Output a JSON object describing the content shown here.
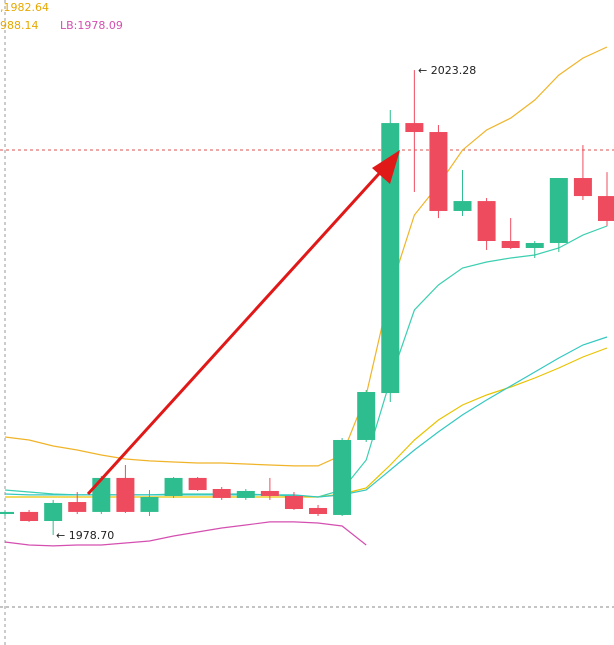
{
  "chart_data": {
    "type": "candlestick",
    "labels": [
      {
        "text": ",1982.64",
        "color": "#e6a800"
      },
      {
        "text": "988.14",
        "color": "#e6a800"
      },
      {
        "text": "LB:1978.09",
        "color": "#d44fb0"
      }
    ],
    "annotations": [
      "← 2023.28",
      "← 1978.70"
    ],
    "ylim": [
      1968.15,
      2030.0
    ],
    "up_color": "#2ebd8e",
    "down_color": "#ef4b5f",
    "candles": {
      "open": [
        1980.71,
        1980.91,
        1980.04,
        1981.86,
        1980.91,
        1984.17,
        1980.91,
        1982.44,
        1984.17,
        1983.11,
        1982.25,
        1982.92,
        1982.44,
        1981.29,
        1980.62,
        1987.81,
        1992.31,
        2018.2,
        2017.34,
        2009.77,
        2010.72,
        2006.89,
        2006.22,
        2006.7,
        2012.93,
        2011.2
      ],
      "high": [
        1981.0,
        1981.1,
        1982.06,
        1982.82,
        1984.36,
        1985.41,
        1983.01,
        1984.26,
        1984.26,
        1983.3,
        1983.11,
        1984.17,
        1982.82,
        1981.58,
        1988.0,
        1992.6,
        2019.45,
        2023.28,
        2018.01,
        2013.7,
        2011.01,
        2009.09,
        2006.89,
        2012.93,
        2016.09,
        2013.5
      ],
      "low": [
        1980.52,
        1979.95,
        1978.7,
        1980.71,
        1980.71,
        1980.81,
        1980.52,
        1982.25,
        1982.92,
        1982.06,
        1982.06,
        1982.06,
        1981.1,
        1980.52,
        1980.52,
        1987.62,
        1991.45,
        2011.59,
        2009.09,
        2009.29,
        2006.03,
        2006.12,
        2005.26,
        2005.83,
        2010.82,
        2008.33
      ],
      "close": [
        1980.91,
        1980.04,
        1981.77,
        1980.91,
        1984.17,
        1980.91,
        1982.34,
        1984.17,
        1983.01,
        1982.25,
        1982.92,
        1982.44,
        1981.19,
        1980.71,
        1987.81,
        1992.41,
        2018.2,
        2017.34,
        2009.77,
        2010.72,
        2006.89,
        2006.22,
        2006.7,
        2012.93,
        2011.2,
        2008.81
      ]
    },
    "lines": [
      {
        "color": "#f0b429",
        "values": [
          1988.1,
          1987.81,
          1987.23,
          1986.85,
          1986.37,
          1985.99,
          1985.8,
          1985.7,
          1985.6,
          1985.6,
          1985.51,
          1985.41,
          1985.32,
          1985.32,
          1986.37,
          1992.12,
          2002.19,
          2009.38,
          2012.26,
          2015.61,
          2017.53,
          2018.68,
          2020.41,
          2022.8,
          2024.43,
          2025.49
        ]
      },
      {
        "color": "#d44fb0",
        "values": [
          1978.03,
          1977.74,
          1977.65,
          1977.74,
          1977.74,
          1977.93,
          1978.12,
          1978.6,
          1978.99,
          1979.37,
          1979.66,
          1979.95,
          1979.95,
          1979.85,
          1979.56,
          1977.74,
          null,
          null,
          null,
          null,
          null,
          null,
          null,
          null,
          null,
          null
        ]
      },
      {
        "color": "#3ccfb0",
        "values": [
          1983.01,
          1982.82,
          1982.63,
          1982.54,
          1982.54,
          1982.54,
          1982.54,
          1982.63,
          1982.63,
          1982.63,
          1982.63,
          1982.54,
          1982.44,
          1982.34,
          1983.01,
          1985.89,
          1993.56,
          2000.27,
          2002.67,
          2004.3,
          2004.88,
          2005.26,
          2005.55,
          2006.22,
          2007.46,
          2008.33
        ]
      },
      {
        "color": "#e9c300",
        "values": [
          1982.34,
          1982.34,
          1982.34,
          1982.34,
          1982.34,
          1982.34,
          1982.34,
          1982.34,
          1982.34,
          1982.34,
          1982.34,
          1982.34,
          1982.34,
          1982.34,
          1982.63,
          1983.21,
          1985.41,
          1987.81,
          1989.73,
          1991.16,
          1992.12,
          1992.89,
          1993.75,
          1994.71,
          1995.77,
          1996.63
        ]
      },
      {
        "color": "#34c8c0",
        "values": [
          1982.63,
          1982.54,
          1982.54,
          1982.54,
          1982.54,
          1982.54,
          1982.54,
          1982.54,
          1982.54,
          1982.54,
          1982.54,
          1982.54,
          1982.54,
          1982.34,
          1982.54,
          1983.01,
          1984.93,
          1986.85,
          1988.58,
          1990.21,
          1991.64,
          1992.99,
          1994.33,
          1995.67,
          1996.92,
          1997.68
        ]
      }
    ]
  }
}
